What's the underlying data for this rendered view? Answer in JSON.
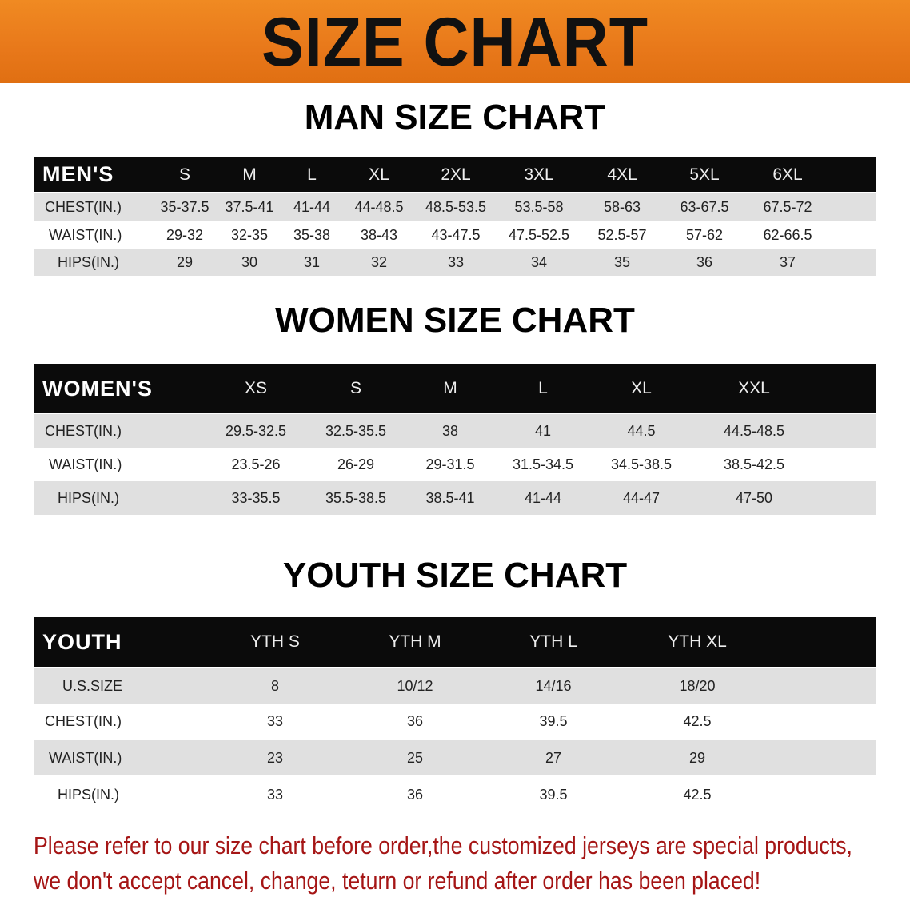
{
  "banner": {
    "title": "SIZE CHART",
    "color": "#e8781a"
  },
  "men": {
    "title": "MAN SIZE CHART",
    "header": "MEN'S",
    "sizes": [
      "S",
      "M",
      "L",
      "XL",
      "2XL",
      "3XL",
      "4XL",
      "5XL",
      "6XL"
    ],
    "rows": [
      {
        "label": "CHEST(IN.)",
        "values": [
          "35-37.5",
          "37.5-41",
          "41-44",
          "44-48.5",
          "48.5-53.5",
          "53.5-58",
          "58-63",
          "63-67.5",
          "67.5-72"
        ]
      },
      {
        "label": "WAIST(IN.)",
        "values": [
          "29-32",
          "32-35",
          "35-38",
          "38-43",
          "43-47.5",
          "47.5-52.5",
          "52.5-57",
          "57-62",
          "62-66.5"
        ]
      },
      {
        "label": "HIPS(IN.)",
        "values": [
          "29",
          "30",
          "31",
          "32",
          "33",
          "34",
          "35",
          "36",
          "37"
        ]
      }
    ]
  },
  "women": {
    "title": "WOMEN SIZE CHART",
    "header": "WOMEN'S",
    "sizes": [
      "XS",
      "S",
      "M",
      "L",
      "XL",
      "XXL"
    ],
    "rows": [
      {
        "label": "CHEST(IN.)",
        "values": [
          "29.5-32.5",
          "32.5-35.5",
          "38",
          "41",
          "44.5",
          "44.5-48.5"
        ]
      },
      {
        "label": "WAIST(IN.)",
        "values": [
          "23.5-26",
          "26-29",
          "29-31.5",
          "31.5-34.5",
          "34.5-38.5",
          "38.5-42.5"
        ]
      },
      {
        "label": "HIPS(IN.)",
        "values": [
          "33-35.5",
          "35.5-38.5",
          "38.5-41",
          "41-44",
          "44-47",
          "47-50"
        ]
      }
    ]
  },
  "youth": {
    "title": "YOUTH SIZE CHART",
    "header": "YOUTH",
    "sizes": [
      "YTH S",
      "YTH M",
      "YTH L",
      "YTH XL"
    ],
    "rows": [
      {
        "label": "U.S.SIZE",
        "values": [
          "8",
          "10/12",
          "14/16",
          "18/20"
        ]
      },
      {
        "label": "CHEST(IN.)",
        "values": [
          "33",
          "36",
          "39.5",
          "42.5"
        ]
      },
      {
        "label": "WAIST(IN.)",
        "values": [
          "23",
          "25",
          "27",
          "29"
        ]
      },
      {
        "label": "HIPS(IN.)",
        "values": [
          "33",
          "36",
          "39.5",
          "42.5"
        ]
      }
    ]
  },
  "notice": {
    "line1": "Please refer to our size chart before order,the customized jerseys are special products,",
    "line2": "we don't accept cancel, change, teturn or refund after order has been placed!",
    "color": "#a51515"
  }
}
